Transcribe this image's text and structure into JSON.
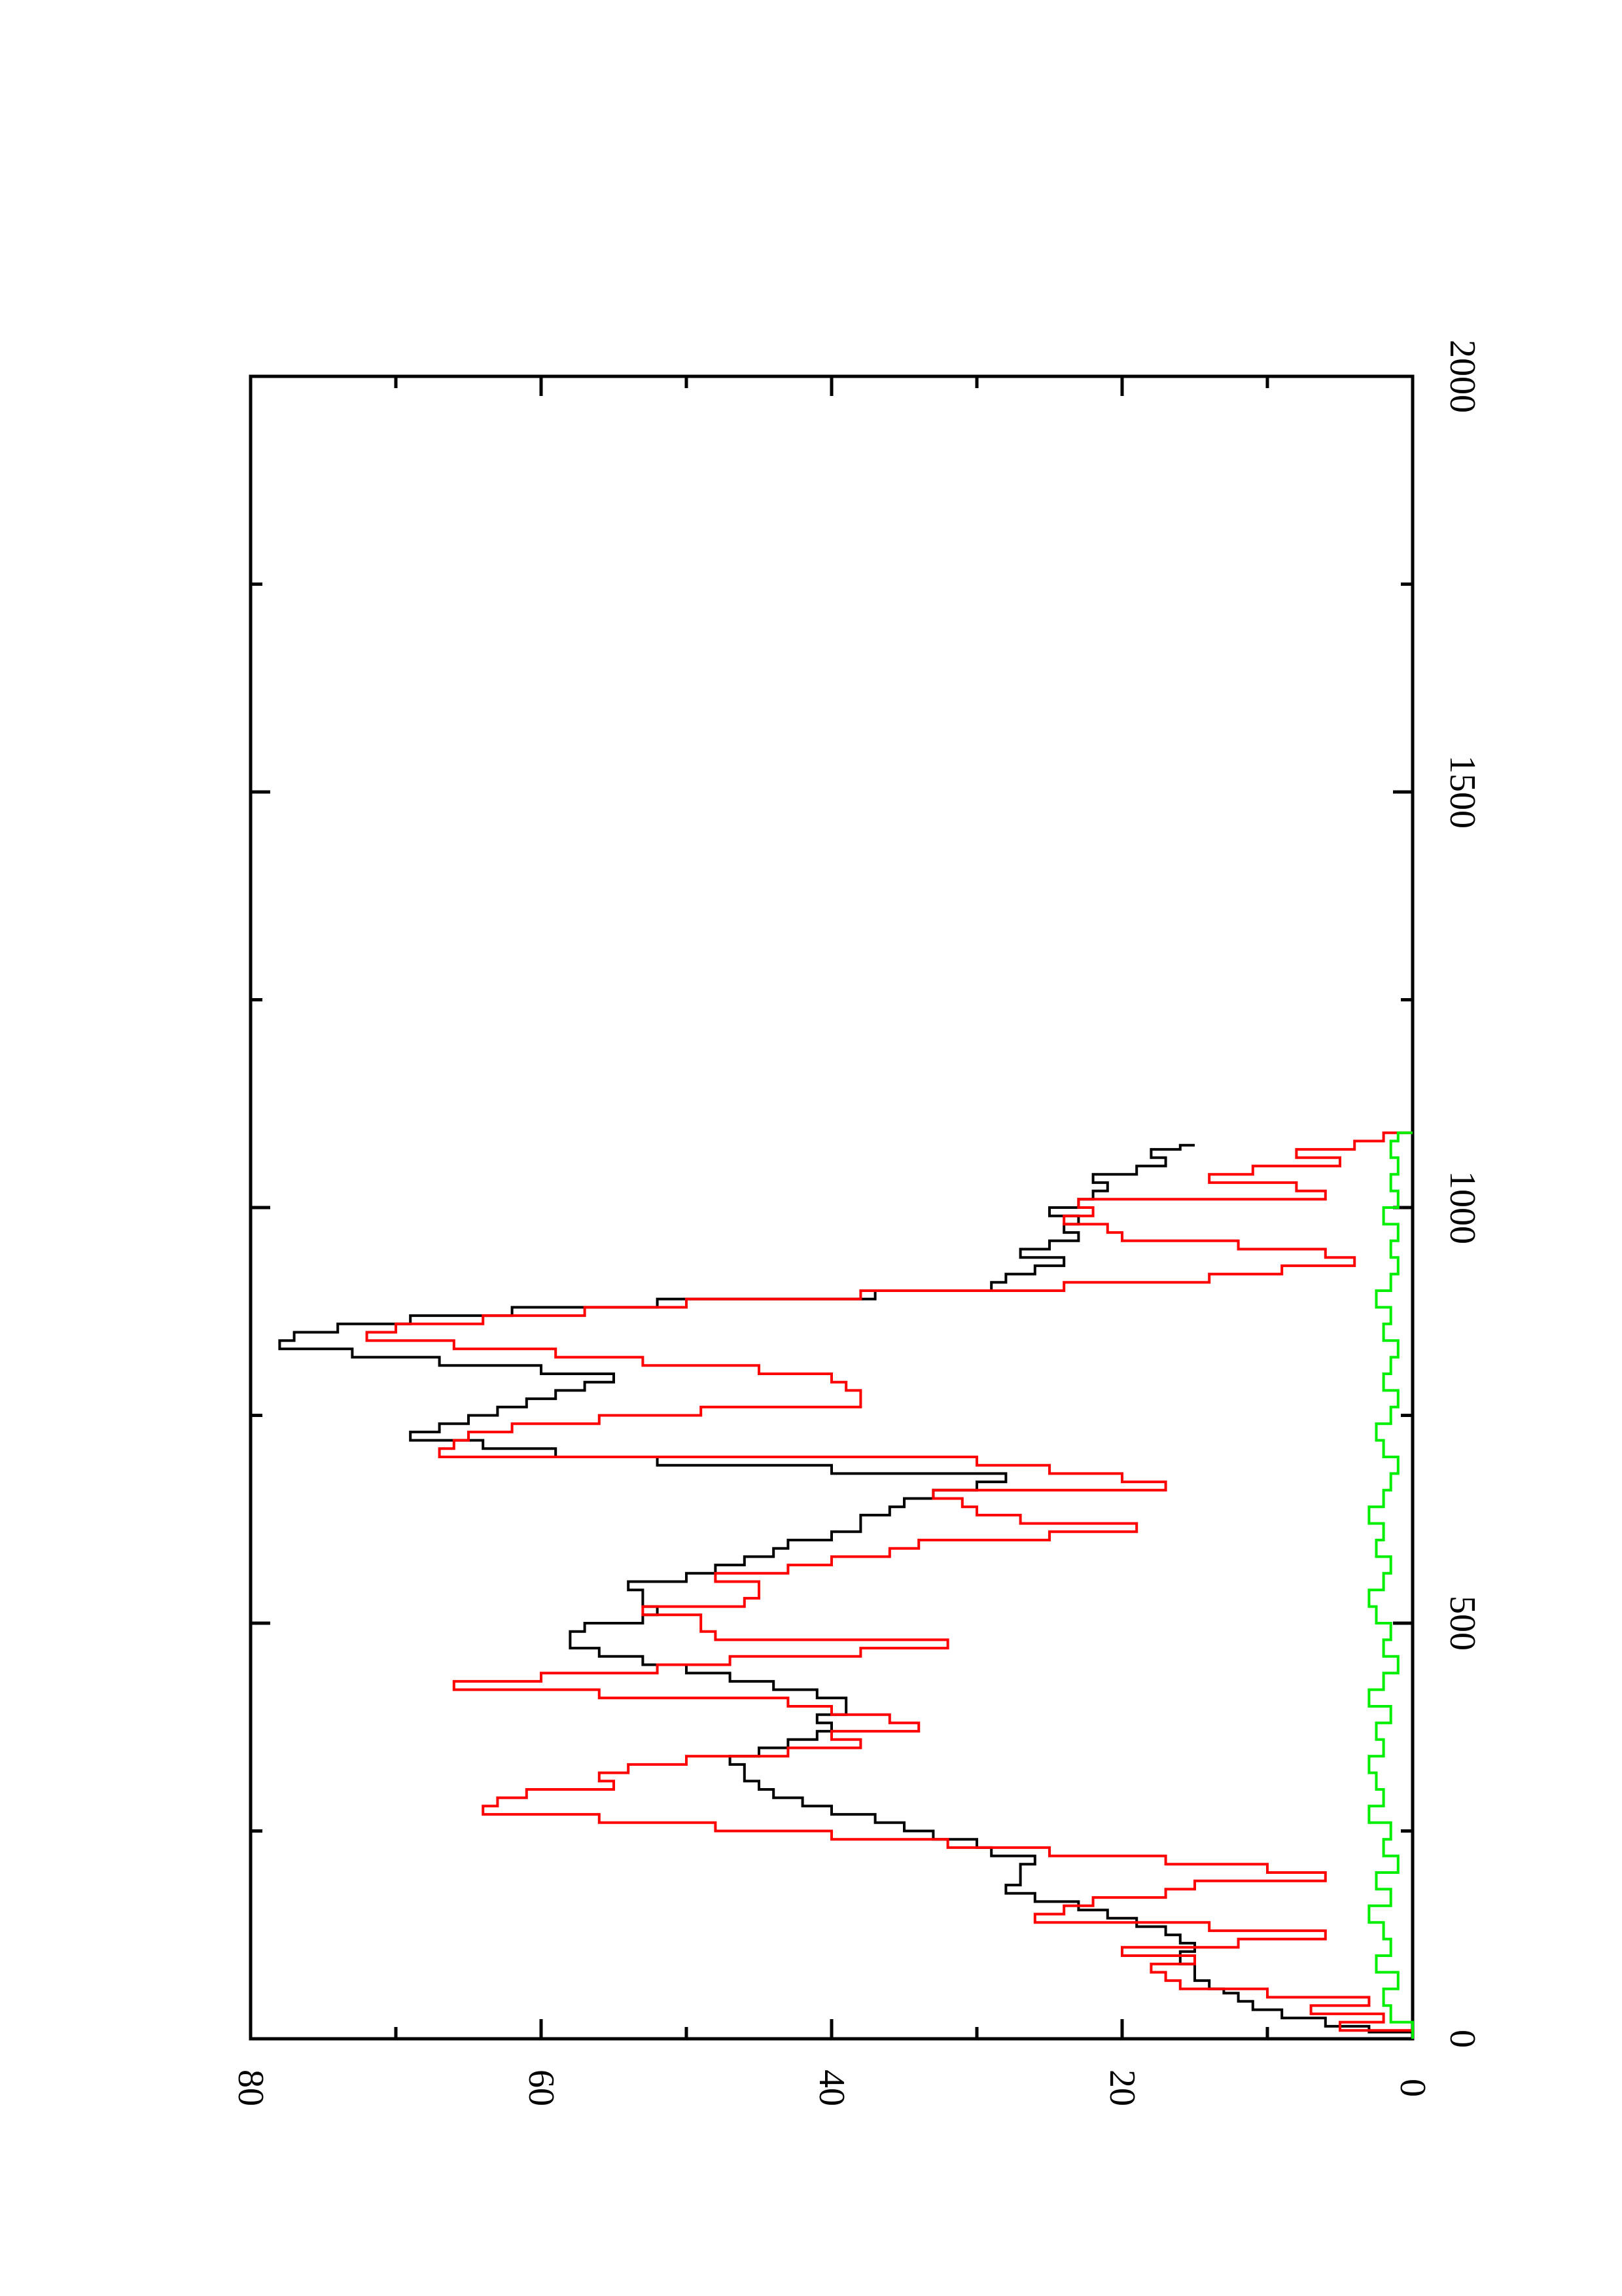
{
  "chart_data": {
    "type": "line",
    "orientation": "rotated-90-clockwise",
    "xlim": [
      0,
      2000
    ],
    "ylim": [
      0,
      80
    ],
    "x_ticks": [
      "0",
      "500",
      "1000",
      "1500",
      "2000"
    ],
    "y_ticks": [
      "0",
      "20",
      "40",
      "60",
      "80"
    ],
    "grid": false,
    "legend": "none",
    "series": [
      {
        "color": "#000000",
        "x": [
          0,
          8,
          15,
          25,
          35,
          45,
          55,
          60,
          70,
          80,
          90,
          100,
          105,
          115,
          125,
          135,
          145,
          155,
          165,
          175,
          185,
          200,
          210,
          220,
          230,
          240,
          250,
          260,
          270,
          280,
          290,
          300,
          310,
          320,
          330,
          340,
          350,
          360,
          370,
          380,
          390,
          400,
          410,
          420,
          430,
          440,
          450,
          460,
          470,
          480,
          490,
          500,
          510,
          520,
          530,
          540,
          550,
          560,
          570,
          580,
          590,
          600,
          610,
          620,
          630,
          640,
          650,
          660,
          670,
          680,
          690,
          700,
          710,
          720,
          730,
          740,
          750,
          760,
          770,
          780,
          790,
          800,
          810,
          820,
          830,
          840,
          850,
          860,
          870,
          880,
          890,
          900,
          910,
          920,
          930,
          940,
          950,
          960,
          970,
          980,
          990,
          1000,
          1010,
          1020,
          1030,
          1040,
          1050,
          1060,
          1070,
          1075
        ],
        "y": [
          0,
          3,
          6,
          9,
          11,
          12,
          13,
          14,
          15,
          15,
          16,
          16,
          15,
          16,
          17,
          19,
          21,
          23,
          26,
          28,
          27,
          27,
          26,
          29,
          30,
          33,
          35,
          37,
          40,
          42,
          44,
          45,
          46,
          46,
          47,
          45,
          43,
          41,
          40,
          41,
          39,
          39,
          41,
          44,
          47,
          50,
          53,
          56,
          58,
          58,
          57,
          53,
          52,
          53,
          53,
          54,
          50,
          48,
          46,
          44,
          43,
          40,
          38,
          38,
          36,
          35,
          33,
          30,
          28,
          40,
          52,
          59,
          64,
          69,
          67,
          65,
          63,
          61,
          59,
          57,
          55,
          60,
          67,
          73,
          78,
          77,
          74,
          69,
          62,
          52,
          37,
          29,
          28,
          26,
          24,
          27,
          25,
          23,
          24,
          23,
          25,
          23,
          22,
          21,
          22,
          19,
          17,
          18,
          16,
          15
        ],
        "values": [
          0,
          3,
          6,
          9,
          11,
          12,
          13,
          14,
          15,
          15,
          16,
          16,
          15,
          16,
          17,
          19,
          21,
          23,
          26,
          28,
          27,
          27,
          26,
          29,
          30,
          33,
          35,
          37,
          40,
          42,
          44,
          45,
          46,
          46,
          47,
          45,
          43,
          41,
          40,
          41,
          39,
          39,
          41,
          44,
          47,
          50,
          53,
          56,
          58,
          58,
          57,
          53,
          52,
          53,
          53,
          54,
          50,
          48,
          46,
          44,
          43,
          40,
          38,
          38,
          36,
          35,
          33,
          30,
          28,
          40,
          52,
          59,
          64,
          69,
          67,
          65,
          63,
          61,
          59,
          57,
          55,
          60,
          67,
          73,
          78,
          77,
          74,
          69,
          62,
          52,
          37,
          29,
          28,
          26,
          24,
          27,
          25,
          23,
          24,
          23,
          25,
          23,
          22,
          21,
          22,
          19,
          17,
          18,
          16,
          15
        ]
      },
      {
        "color": "#ff0000",
        "x": [
          0,
          10,
          20,
          30,
          40,
          50,
          60,
          70,
          80,
          90,
          100,
          110,
          120,
          130,
          140,
          150,
          160,
          170,
          180,
          190,
          200,
          210,
          220,
          230,
          240,
          250,
          260,
          270,
          280,
          290,
          300,
          310,
          320,
          330,
          340,
          350,
          360,
          370,
          380,
          390,
          400,
          410,
          420,
          430,
          440,
          450,
          460,
          470,
          480,
          490,
          500,
          510,
          520,
          530,
          540,
          550,
          560,
          570,
          580,
          590,
          600,
          610,
          620,
          630,
          640,
          650,
          660,
          670,
          680,
          690,
          700,
          710,
          720,
          730,
          740,
          750,
          760,
          770,
          780,
          790,
          800,
          810,
          820,
          830,
          840,
          850,
          860,
          870,
          880,
          890,
          900,
          910,
          920,
          930,
          940,
          950,
          960,
          970,
          980,
          990,
          1000,
          1010,
          1020,
          1030,
          1040,
          1050,
          1060,
          1070,
          1080,
          1090
        ],
        "y": [
          0,
          5,
          2,
          7,
          3,
          10,
          16,
          17,
          18,
          15,
          20,
          12,
          6,
          14,
          26,
          24,
          22,
          17,
          15,
          6,
          10,
          17,
          25,
          32,
          40,
          48,
          56,
          64,
          63,
          61,
          55,
          56,
          54,
          50,
          43,
          38,
          40,
          34,
          36,
          40,
          43,
          56,
          66,
          60,
          52,
          47,
          38,
          32,
          48,
          49,
          49,
          53,
          46,
          45,
          45,
          48,
          43,
          40,
          36,
          34,
          25,
          19,
          27,
          30,
          31,
          33,
          17,
          20,
          25,
          30,
          67,
          66,
          65,
          62,
          56,
          49,
          38,
          38,
          39,
          40,
          45,
          53,
          59,
          66,
          72,
          70,
          64,
          57,
          50,
          38,
          24,
          14,
          9,
          4,
          6,
          12,
          20,
          21,
          24,
          22,
          23,
          6,
          8,
          14,
          11,
          5,
          8,
          4,
          2,
          0
        ],
        "values": [
          0,
          5,
          2,
          7,
          3,
          10,
          16,
          17,
          18,
          15,
          20,
          12,
          6,
          14,
          26,
          24,
          22,
          17,
          15,
          6,
          10,
          17,
          25,
          32,
          40,
          48,
          56,
          64,
          63,
          61,
          55,
          56,
          54,
          50,
          43,
          38,
          40,
          34,
          36,
          40,
          43,
          56,
          66,
          60,
          52,
          47,
          38,
          32,
          48,
          49,
          49,
          53,
          46,
          45,
          45,
          48,
          43,
          40,
          36,
          34,
          25,
          19,
          27,
          30,
          31,
          33,
          17,
          20,
          25,
          30,
          67,
          66,
          65,
          62,
          56,
          49,
          38,
          38,
          39,
          40,
          45,
          53,
          59,
          66,
          72,
          70,
          64,
          57,
          50,
          38,
          24,
          14,
          9,
          4,
          6,
          12,
          20,
          21,
          24,
          22,
          23,
          6,
          8,
          14,
          11,
          5,
          8,
          4,
          2,
          0
        ]
      },
      {
        "color": "#00ee00",
        "x": [
          0,
          20,
          40,
          60,
          80,
          100,
          120,
          140,
          160,
          180,
          200,
          220,
          240,
          260,
          280,
          300,
          320,
          340,
          360,
          380,
          400,
          420,
          440,
          460,
          480,
          500,
          520,
          540,
          560,
          580,
          600,
          620,
          640,
          660,
          680,
          700,
          720,
          740,
          760,
          780,
          800,
          820,
          840,
          860,
          880,
          900,
          920,
          940,
          960,
          980,
          1000,
          1020,
          1040,
          1060,
          1080,
          1090
        ],
        "y": [
          0,
          1.5,
          2,
          1,
          2.5,
          1.5,
          2,
          3,
          1.5,
          2.5,
          1,
          2,
          1.5,
          3,
          2,
          2.5,
          3,
          2,
          2.5,
          1.5,
          3,
          2,
          1,
          2,
          1.5,
          2.5,
          3,
          2,
          1.5,
          2.5,
          2,
          3,
          2,
          1.5,
          1,
          2,
          2.5,
          1.5,
          1,
          2,
          1.5,
          1,
          2,
          1.5,
          2.5,
          1.5,
          1,
          1.5,
          1,
          2,
          1,
          1.5,
          1,
          1.5,
          1,
          0
        ],
        "values": [
          0,
          1.5,
          2,
          1,
          2.5,
          1.5,
          2,
          3,
          1.5,
          2.5,
          1,
          2,
          1.5,
          3,
          2,
          2.5,
          3,
          2,
          2.5,
          1.5,
          3,
          2,
          1,
          2,
          1.5,
          2.5,
          3,
          2,
          1.5,
          2.5,
          2,
          3,
          2,
          1.5,
          1,
          2,
          2.5,
          1.5,
          1,
          2,
          1.5,
          1,
          2,
          1.5,
          2.5,
          1.5,
          1,
          1.5,
          1,
          2,
          1,
          1.5,
          1,
          1.5,
          1,
          0
        ]
      }
    ]
  }
}
